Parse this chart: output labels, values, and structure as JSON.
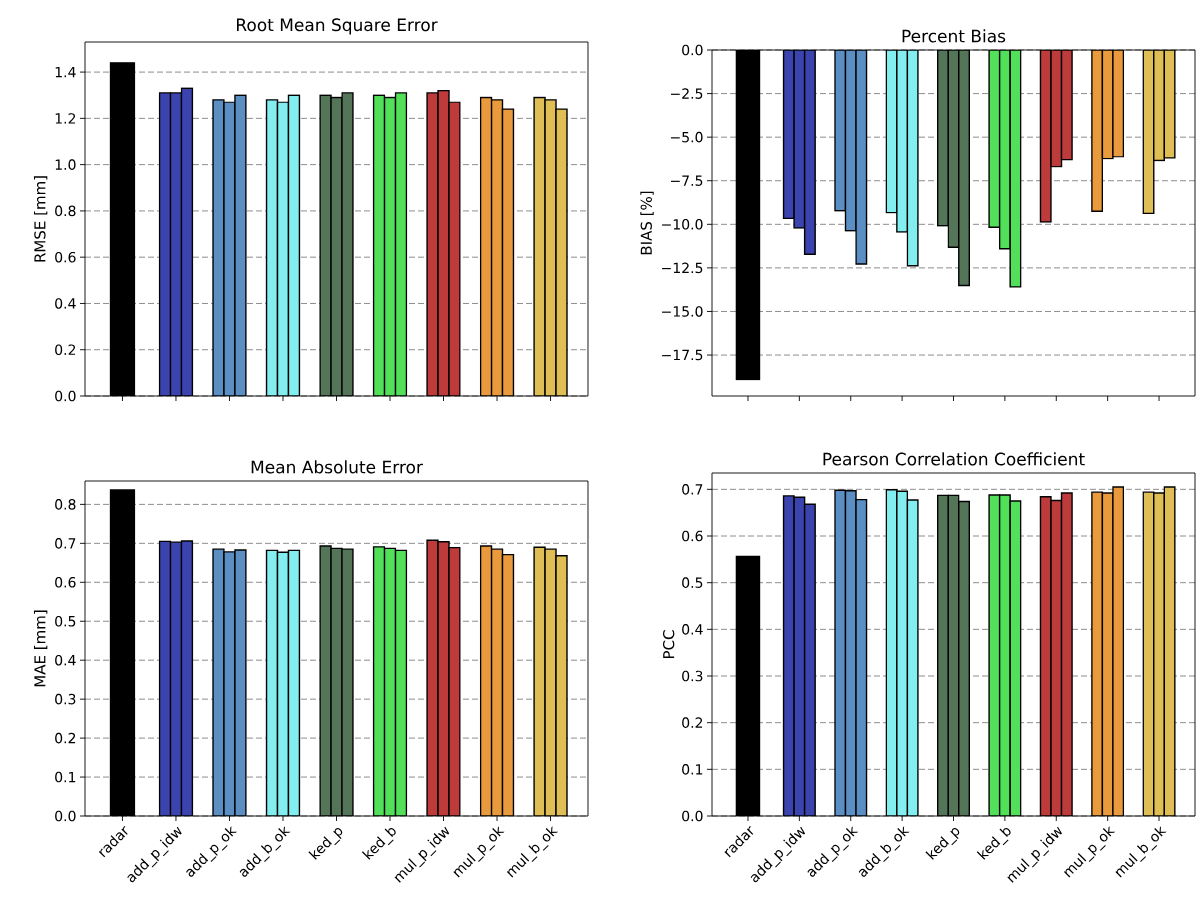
{
  "chart_data": [
    {
      "type": "bar",
      "title": "Root Mean Square Error",
      "ylabel": "RMSE [mm]",
      "categories": [
        null,
        null,
        null,
        null,
        null,
        null,
        null,
        null,
        null
      ],
      "series": [
        {
          "colors": [
            "#000000",
            "#3b44ae",
            "#5b8fc4",
            "#82eef0",
            "#547558",
            "#52df5a",
            "#bd3b3b",
            "#e89a3c",
            "#dfbf55"
          ],
          "values": [
            1.44,
            1.31,
            1.28,
            1.28,
            1.3,
            1.3,
            1.31,
            1.29,
            1.29
          ]
        },
        {
          "colors": [
            null,
            "#3b44ae",
            "#5b8fc4",
            "#82eef0",
            "#547558",
            "#52df5a",
            "#bd3b3b",
            "#e89a3c",
            "#dfbf55"
          ],
          "values": [
            null,
            1.31,
            1.27,
            1.27,
            1.29,
            1.29,
            1.32,
            1.28,
            1.28
          ]
        },
        {
          "colors": [
            null,
            "#3b44ae",
            "#5b8fc4",
            "#82eef0",
            "#547558",
            "#52df5a",
            "#bd3b3b",
            "#e89a3c",
            "#dfbf55"
          ],
          "values": [
            null,
            1.33,
            1.3,
            1.3,
            1.31,
            1.31,
            1.27,
            1.24,
            1.24
          ]
        }
      ],
      "ylim": [
        0,
        1.53
      ],
      "yticks": [
        {
          "value": 0,
          "label": "0.0"
        },
        {
          "value": 0.2,
          "label": "0.2"
        },
        {
          "value": 0.4,
          "label": "0.4"
        },
        {
          "value": 0.6,
          "label": "0.6"
        },
        {
          "value": 0.8,
          "label": "0.8"
        },
        {
          "value": 1.0,
          "label": "1.0"
        },
        {
          "value": 1.2,
          "label": "1.2"
        },
        {
          "value": 1.4,
          "label": "1.4"
        }
      ],
      "grid": "y",
      "tick_labels": "y"
    },
    {
      "type": "bar",
      "title": "Percent Bias",
      "ylabel": "BIAS [%]",
      "categories": [
        null,
        null,
        null,
        null,
        null,
        null,
        null,
        null,
        null
      ],
      "series": [
        {
          "colors": [
            "#000000",
            "#3b44ae",
            "#5b8fc4",
            "#82eef0",
            "#547558",
            "#52df5a",
            "#bd3b3b",
            "#e89a3c",
            "#dfbf55"
          ],
          "values": [
            -18.9,
            -9.66,
            -9.22,
            -9.33,
            -10.08,
            -10.17,
            -9.87,
            -9.25,
            -9.37
          ]
        },
        {
          "colors": [
            null,
            "#3b44ae",
            "#5b8fc4",
            "#82eef0",
            "#547558",
            "#52df5a",
            "#bd3b3b",
            "#e89a3c",
            "#dfbf55"
          ],
          "values": [
            null,
            -10.21,
            -10.37,
            -10.44,
            -11.32,
            -11.4,
            -6.69,
            -6.23,
            -6.34
          ]
        },
        {
          "colors": [
            null,
            "#3b44ae",
            "#5b8fc4",
            "#82eef0",
            "#547558",
            "#52df5a",
            "#bd3b3b",
            "#e89a3c",
            "#dfbf55"
          ],
          "values": [
            null,
            -11.72,
            -12.28,
            -12.38,
            -13.51,
            -13.59,
            -6.3,
            -6.13,
            -6.19
          ]
        }
      ],
      "ylim": [
        -19.85,
        0
      ],
      "yticks": [
        {
          "value": 0,
          "label": "0.0"
        },
        {
          "value": -2.5,
          "label": "−2.5"
        },
        {
          "value": -5,
          "label": "−5.0"
        },
        {
          "value": -7.5,
          "label": "−7.5"
        },
        {
          "value": -10,
          "label": "−10.0"
        },
        {
          "value": -12.5,
          "label": "−12.5"
        },
        {
          "value": -15,
          "label": "−15.0"
        },
        {
          "value": -17.5,
          "label": "−17.5"
        }
      ],
      "grid": "y",
      "tick_labels": "y"
    },
    {
      "type": "bar",
      "title": "Mean Absolute Error",
      "ylabel": "MAE [mm]",
      "categories": [
        "radar",
        "add_p_idw",
        "add_p_ok",
        "add_b_ok",
        "ked_p",
        "ked_b",
        "mul_p_idw",
        "mul_p_ok",
        "mul_b_ok"
      ],
      "series": [
        {
          "colors": [
            "#000000",
            "#3b44ae",
            "#5b8fc4",
            "#82eef0",
            "#547558",
            "#52df5a",
            "#bd3b3b",
            "#e89a3c",
            "#dfbf55"
          ],
          "values": [
            0.837,
            0.705,
            0.685,
            0.682,
            0.693,
            0.691,
            0.708,
            0.693,
            0.69
          ]
        },
        {
          "colors": [
            null,
            "#3b44ae",
            "#5b8fc4",
            "#82eef0",
            "#547558",
            "#52df5a",
            "#bd3b3b",
            "#e89a3c",
            "#dfbf55"
          ],
          "values": [
            null,
            0.703,
            0.678,
            0.677,
            0.687,
            0.687,
            0.704,
            0.685,
            0.685
          ]
        },
        {
          "colors": [
            null,
            "#3b44ae",
            "#5b8fc4",
            "#82eef0",
            "#547558",
            "#52df5a",
            "#bd3b3b",
            "#e89a3c",
            "#dfbf55"
          ],
          "values": [
            null,
            0.706,
            0.683,
            0.682,
            0.685,
            0.682,
            0.689,
            0.671,
            0.668
          ]
        }
      ],
      "ylim": [
        0,
        0.86
      ],
      "yticks": [
        {
          "value": 0,
          "label": "0.0"
        },
        {
          "value": 0.1,
          "label": "0.1"
        },
        {
          "value": 0.2,
          "label": "0.2"
        },
        {
          "value": 0.3,
          "label": "0.3"
        },
        {
          "value": 0.4,
          "label": "0.4"
        },
        {
          "value": 0.5,
          "label": "0.5"
        },
        {
          "value": 0.6,
          "label": "0.6"
        },
        {
          "value": 0.7,
          "label": "0.7"
        },
        {
          "value": 0.8,
          "label": "0.8"
        }
      ],
      "grid": "y"
    },
    {
      "type": "bar",
      "title": "Pearson Correlation Coefficient",
      "ylabel": "PCC",
      "categories": [
        "radar",
        "add_p_idw",
        "add_p_ok",
        "add_b_ok",
        "ked_p",
        "ked_b",
        "mul_p_idw",
        "mul_p_ok",
        "mul_b_ok"
      ],
      "series": [
        {
          "colors": [
            "#000000",
            "#3b44ae",
            "#5b8fc4",
            "#82eef0",
            "#547558",
            "#52df5a",
            "#bd3b3b",
            "#e89a3c",
            "#dfbf55"
          ],
          "values": [
            0.556,
            0.686,
            0.698,
            0.699,
            0.687,
            0.688,
            0.684,
            0.694,
            0.694
          ]
        },
        {
          "colors": [
            null,
            "#3b44ae",
            "#5b8fc4",
            "#82eef0",
            "#547558",
            "#52df5a",
            "#bd3b3b",
            "#e89a3c",
            "#dfbf55"
          ],
          "values": [
            null,
            0.683,
            0.697,
            0.696,
            0.687,
            0.688,
            0.676,
            0.692,
            0.692
          ]
        },
        {
          "colors": [
            null,
            "#3b44ae",
            "#5b8fc4",
            "#82eef0",
            "#547558",
            "#52df5a",
            "#bd3b3b",
            "#e89a3c",
            "#dfbf55"
          ],
          "values": [
            null,
            0.668,
            0.678,
            0.677,
            0.674,
            0.675,
            0.692,
            0.705,
            0.705
          ]
        }
      ],
      "ylim": [
        0,
        0.735
      ],
      "yticks": [
        {
          "value": 0,
          "label": "0.0"
        },
        {
          "value": 0.1,
          "label": "0.1"
        },
        {
          "value": 0.2,
          "label": "0.2"
        },
        {
          "value": 0.3,
          "label": "0.3"
        },
        {
          "value": 0.4,
          "label": "0.4"
        },
        {
          "value": 0.5,
          "label": "0.5"
        },
        {
          "value": 0.6,
          "label": "0.6"
        },
        {
          "value": 0.7,
          "label": "0.7"
        }
      ],
      "grid": "y"
    }
  ]
}
